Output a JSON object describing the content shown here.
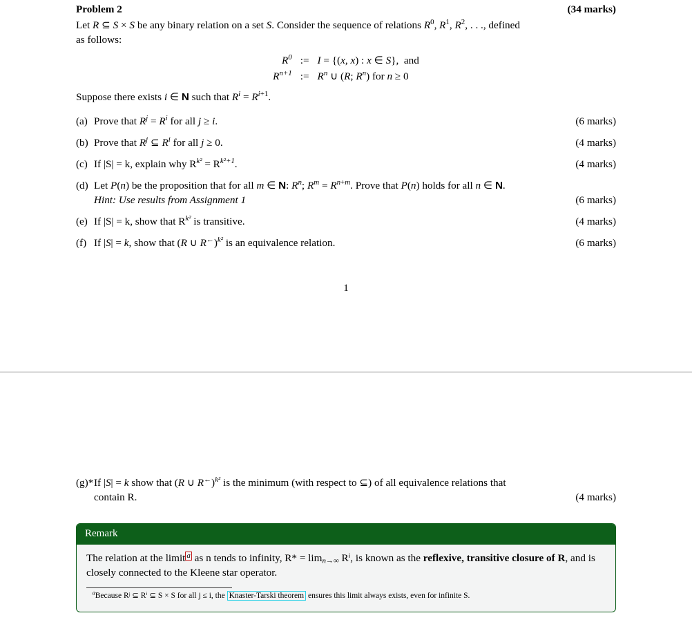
{
  "header": {
    "title": "Problem 2",
    "marks": "(34 marks)"
  },
  "intro": {
    "line1_pre": "Let ",
    "line1_mid": " be any binary relation on a set ",
    "line1_post": ". Consider the sequence of relations ",
    "line1_tail": ", defined",
    "line2": "as follows:"
  },
  "eq": {
    "r0_lhs": "R",
    "coloneq": ":=",
    "r0_rhs_pre": "I = {(x, x) : x ∈ S},  and",
    "rn1_lhs_sup": "n+1",
    "rn1_rhs": "Rⁿ ∪ (R; Rⁿ) for n ≥ 0"
  },
  "suppose": "Suppose there exists i ∈ ℕ such that Rⁱ = Rⁱ⁺¹.",
  "parts": {
    "a": {
      "label": "(a)",
      "text": "Prove that Rʲ = Rⁱ for all j ≥ i.",
      "marks": "(6 marks)"
    },
    "b": {
      "label": "(b)",
      "text": "Prove that Rʲ ⊆ Rⁱ for all j ≥ 0.",
      "marks": "(4 marks)"
    },
    "c": {
      "label": "(c)",
      "pre": "If |S| = k, explain why R",
      "mid": " = R",
      "post": ".",
      "marks": "(4 marks)"
    },
    "d": {
      "label": "(d)",
      "text": "Let P(n) be the proposition that for all m ∈ ℕ: Rⁿ; Rᵐ = Rⁿ⁺ᵐ. Prove that P(n) holds for all n ∈ ℕ.",
      "hint": "Hint: Use results from Assignment 1",
      "marks": "(6 marks)"
    },
    "e": {
      "label": "(e)",
      "pre": "If |S| = k, show that R",
      "post": " is transitive.",
      "marks": "(4 marks)"
    },
    "f": {
      "label": "(f)",
      "pre": "If |S| = k, show that (R ∪ R←)",
      "post": " is an equivalence relation.",
      "marks": "(6 marks)"
    },
    "g": {
      "label": "(g)*",
      "pre": "If |S| = k show that (R ∪ R←)",
      "mid": " is the minimum (with respect to ⊆) of all equivalence relations that",
      "line2": "contain R.",
      "marks": "(4 marks)"
    }
  },
  "pagenum": "1",
  "remark": {
    "title": "Remark",
    "body_pre": "The relation at the limit",
    "body_mid": " as n tends to infinity, R* = lim",
    "body_mid2": " Rⁱ, is known as the ",
    "bold": "reflexive, transitive closure of R",
    "body_post": ", and is closely connected to the Kleene star operator.",
    "foot_pre": "Because Rʲ ⊆ Rⁱ ⊆ S × S for all j ≤ i, the ",
    "foot_link": "Knaster-Tarski theorem",
    "foot_post": " ensures this limit always exists, even for infinite S.",
    "foot_marker": "a",
    "lim_sub": "n→∞"
  },
  "sym": {
    "R": "R",
    "S": "S",
    "subseteq": "⊆",
    "times": "×",
    "k2": "k²",
    "k2p1": "k²+1",
    "zero": "0",
    "one": "1",
    "two": "2",
    "dots": ", . . ."
  }
}
